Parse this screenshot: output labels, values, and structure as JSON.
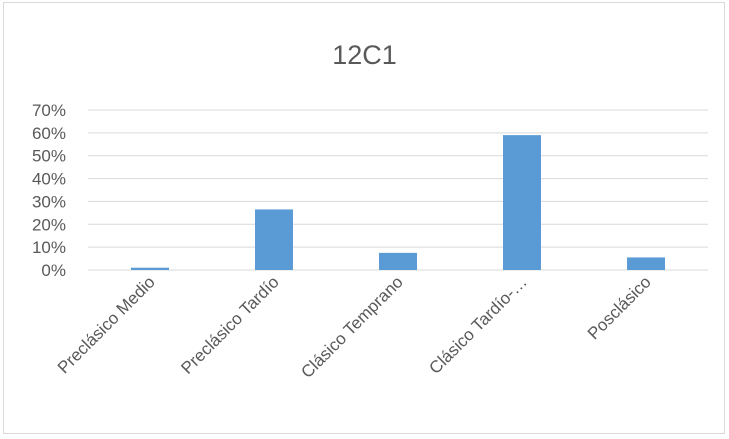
{
  "chart_data": {
    "type": "bar",
    "title": "12C1",
    "xlabel": "",
    "ylabel": "",
    "categories": [
      "Preclásico Medio",
      "Preclásico Tardío",
      "Clásico Temprano",
      "Clásico Tardío-…",
      "Posclásico"
    ],
    "values": [
      0.01,
      0.265,
      0.075,
      0.59,
      0.055
    ],
    "ylim": [
      0,
      0.7
    ],
    "yticks": [
      0,
      0.1,
      0.2,
      0.3,
      0.4,
      0.5,
      0.6,
      0.7
    ],
    "ytick_labels": [
      "0%",
      "10%",
      "20%",
      "30%",
      "40%",
      "50%",
      "60%",
      "70%"
    ],
    "grid": true,
    "legend": "none",
    "colors": {
      "bar": "#5b9bd5",
      "grid": "#d9d9d9",
      "text": "#595959"
    }
  }
}
